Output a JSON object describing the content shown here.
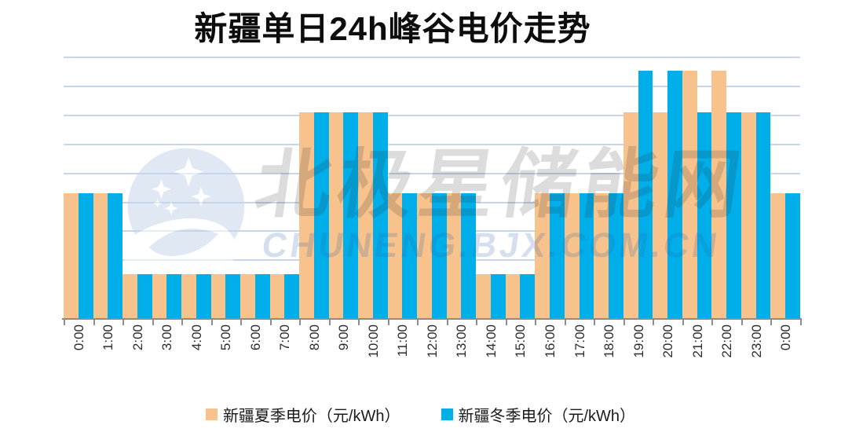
{
  "title": "新疆单日24h峰谷电价走势",
  "legend": {
    "items": [
      {
        "id": "summer",
        "label": "新疆夏季电价（元/kWh）",
        "color": "#F7C28C"
      },
      {
        "id": "winter",
        "label": "新疆冬季电价（元/kWh）",
        "color": "#00AFEA"
      }
    ]
  },
  "watermark": {
    "logo": "bjx-crescent-stars-logo",
    "brand_text": "北极星储能网",
    "url_text": "CHUNENG.BJX.COM.CN"
  },
  "axis": {
    "baseline_color": "#8C8C8C",
    "grid_color": "#C9D5EA",
    "label_color": "#2B2B2B"
  },
  "chart_data": {
    "type": "bar",
    "title": "新疆单日24h峰谷电价走势",
    "unit": "元/kWh",
    "categories": [
      "0:00",
      "1:00",
      "2:00",
      "3:00",
      "4:00",
      "5:00",
      "6:00",
      "7:00",
      "8:00",
      "9:00",
      "10:00",
      "11:00",
      "12:00",
      "13:00",
      "14:00",
      "15:00",
      "16:00",
      "17:00",
      "18:00",
      "19:00",
      "20:00",
      "21:00",
      "22:00",
      "23:00",
      "0:00"
    ],
    "series": [
      {
        "name": "新疆夏季电价（元/kWh）",
        "color": "#F7C28C",
        "values": [
          0.435,
          0.435,
          0.155,
          0.155,
          0.155,
          0.155,
          0.155,
          0.155,
          0.715,
          0.715,
          0.715,
          0.435,
          0.435,
          0.435,
          0.155,
          0.155,
          0.435,
          0.435,
          0.435,
          0.715,
          0.715,
          0.858,
          0.858,
          0.715,
          0.435
        ]
      },
      {
        "name": "新疆冬季电价（元/kWh）",
        "color": "#00AFEA",
        "values": [
          0.435,
          0.435,
          0.155,
          0.155,
          0.155,
          0.155,
          0.155,
          0.155,
          0.715,
          0.715,
          0.715,
          0.435,
          0.435,
          0.435,
          0.155,
          0.155,
          0.435,
          0.435,
          0.435,
          0.858,
          0.858,
          0.715,
          0.715,
          0.715,
          0.435
        ]
      }
    ],
    "price_levels": {
      "valley": 0.155,
      "flat": 0.435,
      "peak": 0.715,
      "sharp_peak": 0.858
    },
    "ylim": [
      0,
      0.9
    ],
    "gridlines": {
      "count": 9,
      "step": 0.1
    },
    "y_axis_labels_visible": false,
    "grid": true,
    "legend_position": "bottom"
  }
}
